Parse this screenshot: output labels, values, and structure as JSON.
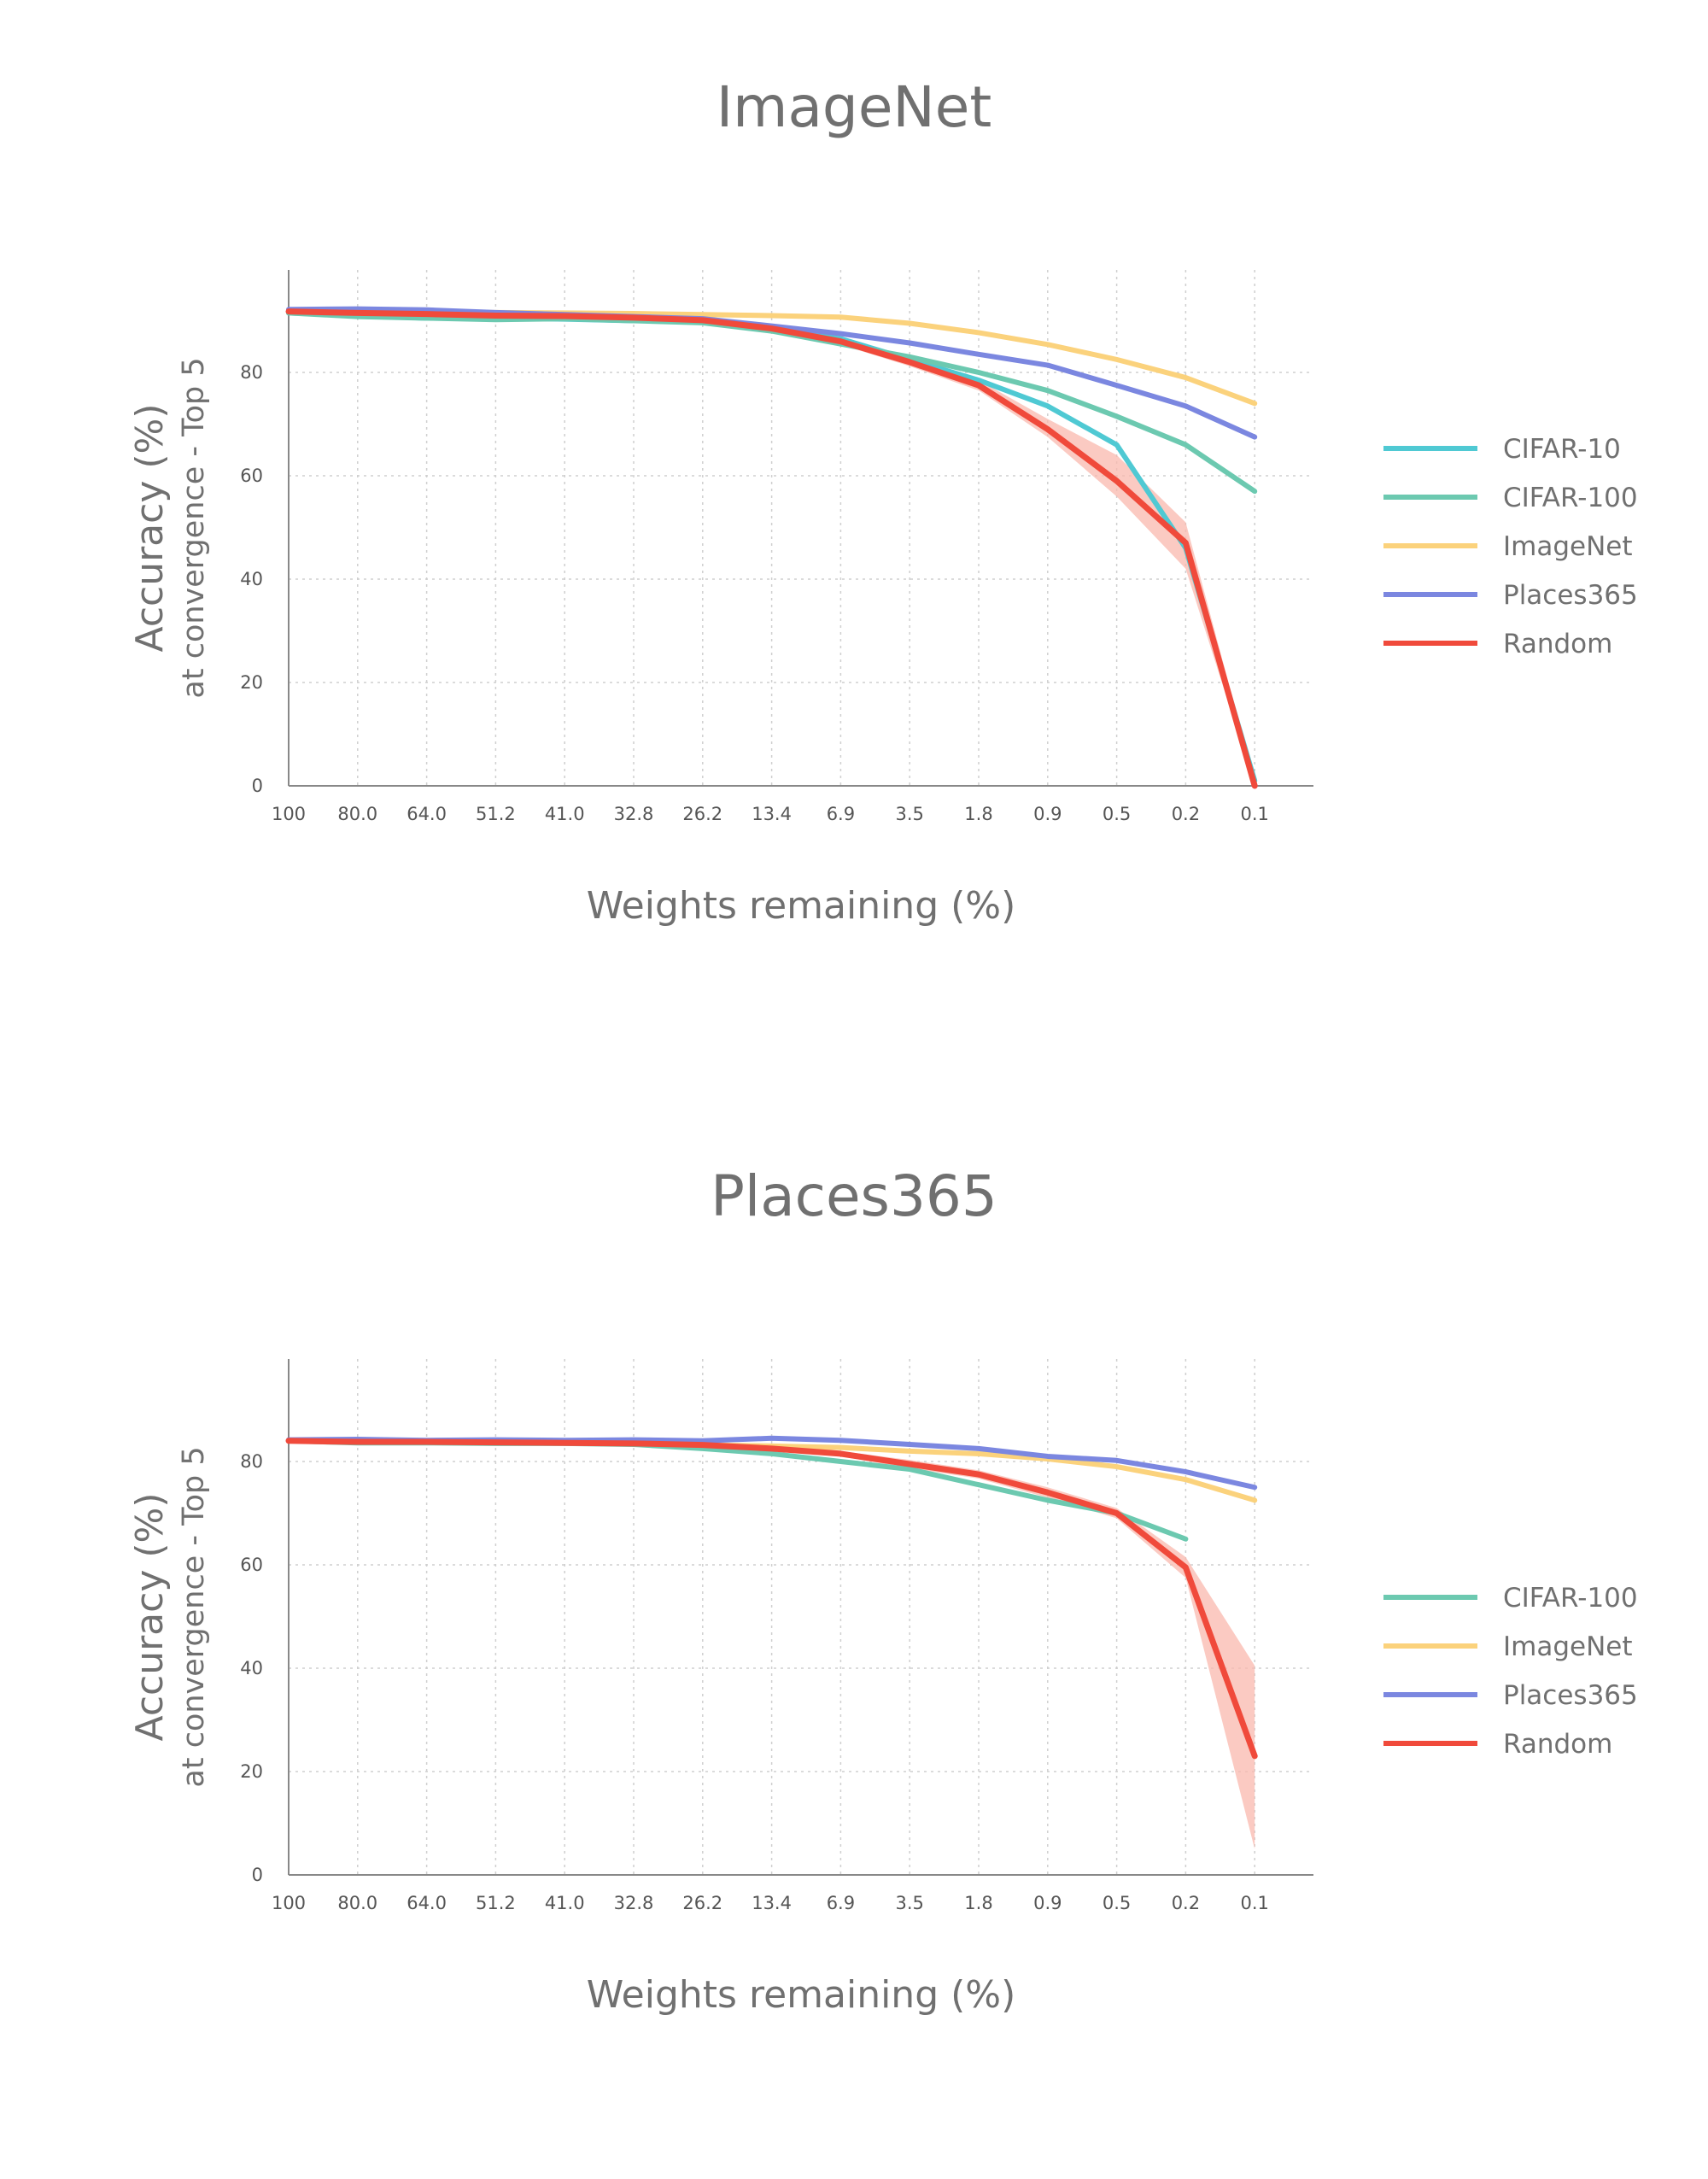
{
  "chart_data": [
    {
      "type": "line",
      "title": "ImageNet",
      "xlabel": "Weights remaining (%)",
      "ylabel": "Accuracy (%)",
      "ylabel_sub": "at convergence - Top 5",
      "categories": [
        "100",
        "80.0",
        "64.0",
        "51.2",
        "41.0",
        "32.8",
        "26.2",
        "13.4",
        "6.9",
        "3.5",
        "1.8",
        "0.9",
        "0.5",
        "0.2",
        "0.1"
      ],
      "yticks": [
        0,
        20,
        40,
        60,
        80
      ],
      "ylim": [
        0,
        100
      ],
      "grid": true,
      "legend_position": "right",
      "series": [
        {
          "name": "CIFAR-10",
          "color": "#4fc9d3",
          "values": [
            91.5,
            91,
            90.5,
            90.5,
            90.3,
            90,
            90,
            88.5,
            86.5,
            82.5,
            78.5,
            73.5,
            66,
            46,
            1
          ]
        },
        {
          "name": "CIFAR-100",
          "color": "#6cc9b0",
          "values": [
            91.5,
            90.8,
            90.5,
            90.2,
            90.4,
            90,
            89.6,
            88,
            85.5,
            83,
            80,
            76.5,
            71.5,
            66,
            57
          ]
        },
        {
          "name": "ImageNet",
          "color": "#fbd27c",
          "values": [
            92,
            91.8,
            91.6,
            91.6,
            91.5,
            91.4,
            91.2,
            91,
            90.7,
            89.5,
            87.7,
            85.4,
            82.5,
            79,
            74
          ]
        },
        {
          "name": "Places365",
          "color": "#7b87e0",
          "values": [
            92.2,
            92.3,
            92.1,
            91.6,
            91.2,
            90.8,
            90.4,
            89,
            87.5,
            85.7,
            83.5,
            81.4,
            77.5,
            73.5,
            67.5
          ]
        },
        {
          "name": "Random",
          "color": "#f04a3b",
          "values": [
            91.8,
            91.5,
            91.3,
            91,
            90.9,
            90.6,
            90.1,
            88.5,
            86,
            82,
            77.5,
            69,
            59,
            47,
            0
          ],
          "band_upper": [
            92.2,
            91.8,
            91.6,
            91.3,
            91.2,
            91,
            90.5,
            89,
            86.6,
            82.8,
            78.5,
            71,
            64,
            51,
            1
          ],
          "band_lower": [
            91.4,
            91.2,
            91,
            90.7,
            90.6,
            90.2,
            89.7,
            88,
            85.4,
            81.2,
            76.5,
            67.5,
            56,
            42,
            0
          ]
        }
      ]
    },
    {
      "type": "line",
      "title": "Places365",
      "xlabel": "Weights remaining (%)",
      "ylabel": "Accuracy (%)",
      "ylabel_sub": "at convergence - Top 5",
      "categories": [
        "100",
        "80.0",
        "64.0",
        "51.2",
        "41.0",
        "32.8",
        "26.2",
        "13.4",
        "6.9",
        "3.5",
        "1.8",
        "0.9",
        "0.5",
        "0.2",
        "0.1"
      ],
      "yticks": [
        0,
        20,
        40,
        60,
        80
      ],
      "ylim": [
        0,
        100
      ],
      "grid": true,
      "legend_position": "right",
      "series": [
        {
          "name": "CIFAR-100",
          "color": "#6cc9b0",
          "values": [
            84,
            83.6,
            83.6,
            83.5,
            83.5,
            83.3,
            82.5,
            81.5,
            80,
            78.5,
            75.5,
            72.5,
            70,
            65,
            null
          ]
        },
        {
          "name": "ImageNet",
          "color": "#fbd27c",
          "values": [
            84,
            83.9,
            83.8,
            83.7,
            83.7,
            83.5,
            83.2,
            83,
            82.7,
            82,
            81.5,
            80.5,
            79,
            76.5,
            72.5
          ]
        },
        {
          "name": "Places365",
          "color": "#7b87e0",
          "values": [
            84.2,
            84.3,
            84.1,
            84.2,
            84.1,
            84.2,
            84,
            84.5,
            84.1,
            83.3,
            82.5,
            81,
            80.2,
            78,
            75
          ]
        },
        {
          "name": "Random",
          "color": "#f04a3b",
          "values": [
            84,
            83.8,
            83.8,
            83.7,
            83.6,
            83.5,
            83.2,
            82.5,
            81.5,
            79.5,
            77.5,
            74,
            70,
            59.5,
            23
          ],
          "band_upper": [
            84.3,
            84.1,
            84.1,
            84,
            83.9,
            83.8,
            83.5,
            83,
            82,
            80.3,
            78.3,
            75,
            71,
            61.5,
            40.5
          ],
          "band_lower": [
            83.7,
            83.5,
            83.5,
            83.4,
            83.3,
            83.2,
            82.9,
            82,
            81,
            78.7,
            76.7,
            73,
            69,
            57.5,
            5
          ]
        }
      ]
    }
  ]
}
